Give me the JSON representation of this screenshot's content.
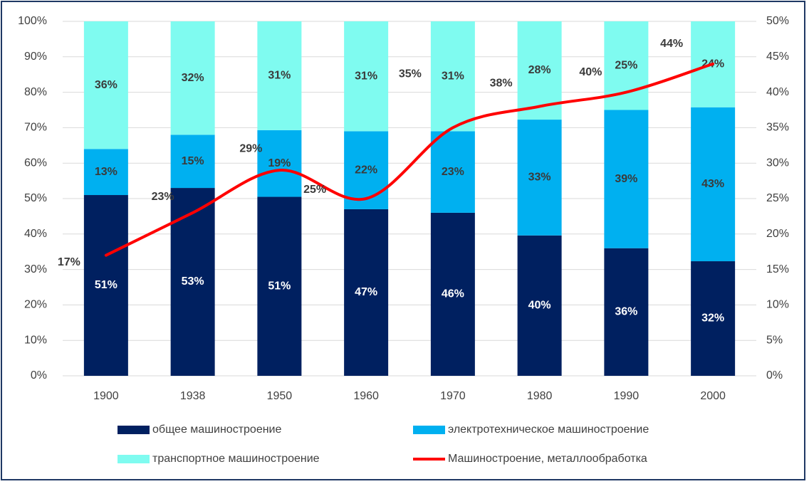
{
  "chart_data": {
    "type": "bar",
    "stacked": true,
    "categories": [
      "1900",
      "1938",
      "1950",
      "1960",
      "1970",
      "1980",
      "1990",
      "2000"
    ],
    "series": [
      {
        "name": "общее машиностроение",
        "color": "#002060",
        "values": [
          51,
          53,
          51,
          47,
          46,
          40,
          36,
          32
        ],
        "labels": [
          "51%",
          "53%",
          "51%",
          "47%",
          "46%",
          "40%",
          "36%",
          "32%"
        ],
        "axis": "left"
      },
      {
        "name": "электротехническое машиностроение",
        "color": "#00b0f0",
        "values": [
          13,
          15,
          19,
          22,
          23,
          33,
          39,
          43
        ],
        "labels": [
          "13%",
          "15%",
          "19%",
          "22%",
          "23%",
          "33%",
          "39%",
          "43%"
        ],
        "axis": "left"
      },
      {
        "name": "транспортное машиностроение",
        "color": "#7ffbf0",
        "values": [
          36,
          32,
          31,
          31,
          31,
          28,
          25,
          24
        ],
        "labels": [
          "36%",
          "32%",
          "31%",
          "31%",
          "31%",
          "28%",
          "25%",
          "24%"
        ],
        "axis": "left"
      }
    ],
    "line_series": {
      "name": "Машиностроение, металлообработка",
      "type": "line",
      "color": "#ff0000",
      "axis": "right",
      "values": [
        17,
        23,
        29,
        25,
        35,
        38,
        40,
        44
      ],
      "labels": [
        "17%",
        "23%",
        "29%",
        "25%",
        "35%",
        "38%",
        "40%",
        "44%"
      ]
    },
    "y_left": {
      "lim": [
        0,
        100
      ],
      "ticks": [
        "0%",
        "10%",
        "20%",
        "30%",
        "40%",
        "50%",
        "60%",
        "70%",
        "80%",
        "90%",
        "100%"
      ]
    },
    "y_right": {
      "lim": [
        0,
        50
      ],
      "ticks": [
        "0%",
        "5%",
        "10%",
        "15%",
        "20%",
        "25%",
        "30%",
        "35%",
        "40%",
        "45%",
        "50%"
      ]
    },
    "grid": true,
    "legend_position": "bottom",
    "legend": [
      "общее машиностроение",
      "электротехническое машиностроение",
      "транспортное машиностроение",
      "Машиностроение, металлообработка"
    ]
  }
}
